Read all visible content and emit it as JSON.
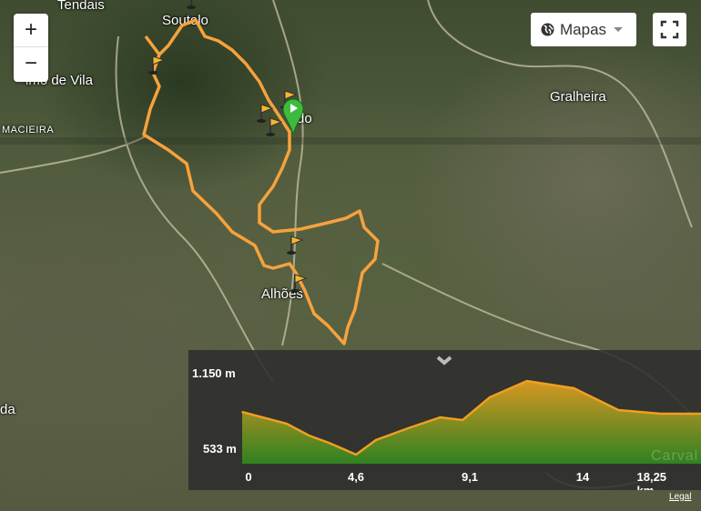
{
  "map": {
    "places": [
      "Tendais",
      "Soutelo",
      "Gralheira",
      "imo de Vila",
      "MACIEIRA",
      "Alhões",
      "da",
      "do",
      "Carval"
    ],
    "route_color": "#f7a23c",
    "start_marker_color": "#3dbb3d",
    "waypoint_icon": "flag-icon",
    "waypoint_count": 7
  },
  "controls": {
    "zoom_in": "+",
    "zoom_out": "−",
    "layer_label": "Mapas",
    "layer_icon": "globe-icon",
    "fullscreen_icon": "fullscreen-icon"
  },
  "chart_data": {
    "type": "area",
    "xlabel": "km",
    "ylabel": "m",
    "y_tick_labels": [
      "1.150 m",
      "533 m"
    ],
    "x_tick_labels": [
      "0",
      "4,6",
      "9,1",
      "14",
      "18,25 km"
    ],
    "x": [
      0,
      1.8,
      2.7,
      3.5,
      4.6,
      5.4,
      6.7,
      8.0,
      8.9,
      10.0,
      11.5,
      13.4,
      15.2,
      16.9,
      18.25
    ],
    "y": [
      830,
      734,
      637,
      578,
      481,
      600,
      697,
      786,
      764,
      950,
      1083,
      1024,
      845,
      816,
      816
    ],
    "colors": {
      "top": "#e8a21f",
      "bottom": "#2f8a1f",
      "line": "#f0a020"
    }
  },
  "footer": {
    "legal": "Legal"
  }
}
